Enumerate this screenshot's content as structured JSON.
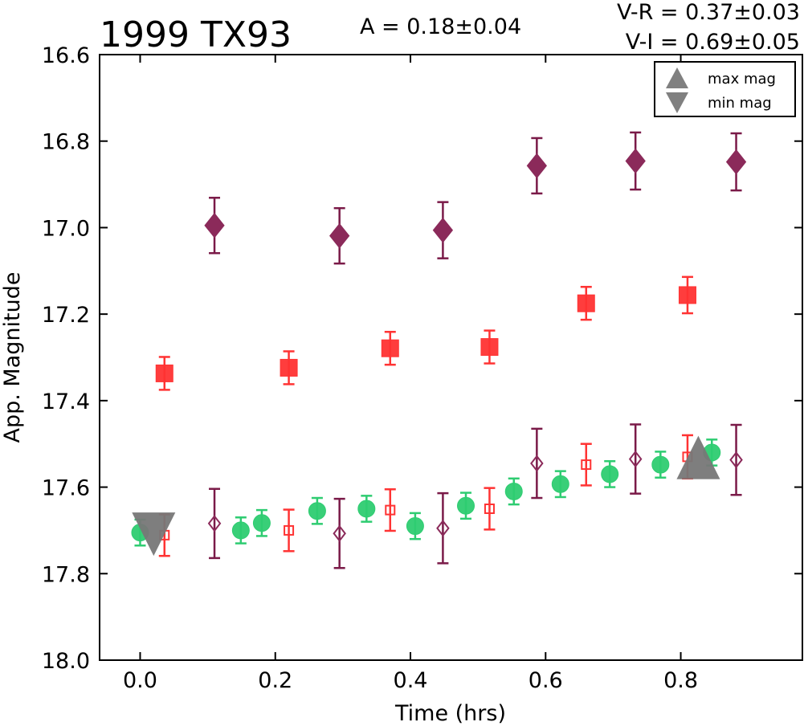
{
  "chart_data": {
    "type": "scatter",
    "title": "1999 TX93",
    "annotations": {
      "amplitude": "A  = 0.18±0.04",
      "v_r": "V-R = 0.37±0.03",
      "v_i": "V-I  = 0.69±0.05"
    },
    "xlabel": "Time (hrs)",
    "ylabel": "App. Magnitude",
    "xlim": [
      -0.06,
      0.98
    ],
    "ylim": [
      18.0,
      16.6
    ],
    "y_inverted": true,
    "x_ticks": [
      0.0,
      0.2,
      0.4,
      0.6,
      0.8
    ],
    "x_tick_labels": [
      "0.0",
      "0.2",
      "0.4",
      "0.6",
      "0.8"
    ],
    "y_ticks": [
      16.6,
      16.8,
      17.0,
      17.2,
      17.4,
      17.6,
      17.8,
      18.0
    ],
    "y_tick_labels": [
      "16.6",
      "16.8",
      "17.0",
      "17.2",
      "17.4",
      "17.6",
      "17.8",
      "18.0"
    ],
    "grid": false,
    "legend": {
      "placement": "top-right",
      "entries": [
        {
          "label": "max mag",
          "marker": "triangle-up",
          "color": "#808080"
        },
        {
          "label": "min mag",
          "marker": "triangle-down",
          "color": "#808080"
        }
      ]
    },
    "colors": {
      "green": "#2ecc71",
      "red": "#ff3333",
      "purple": "#8b2a5a",
      "purple_err": "#7a1a48",
      "gray": "#777777"
    },
    "series": [
      {
        "marker": "circle",
        "filled": true,
        "color": "#2ecc71",
        "x": [
          0.0,
          0.149,
          0.18,
          0.262,
          0.335,
          0.407,
          0.482,
          0.553,
          0.622,
          0.695,
          0.77,
          0.846
        ],
        "y": [
          17.705,
          17.7,
          17.683,
          17.655,
          17.65,
          17.69,
          17.643,
          17.61,
          17.593,
          17.57,
          17.548,
          17.52
        ],
        "yerr": [
          0.03,
          0.03,
          0.03,
          0.03,
          0.03,
          0.03,
          0.03,
          0.03,
          0.03,
          0.03,
          0.03,
          0.03
        ]
      },
      {
        "marker": "square",
        "filled": true,
        "color": "#ff3333",
        "x": [
          0.036,
          0.22,
          0.37,
          0.517,
          0.66,
          0.81
        ],
        "y": [
          17.337,
          17.324,
          17.279,
          17.276,
          17.175,
          17.156
        ],
        "yerr": [
          0.038,
          0.038,
          0.038,
          0.038,
          0.038,
          0.042
        ]
      },
      {
        "marker": "square",
        "filled": false,
        "color": "#ff3333",
        "x": [
          0.036,
          0.22,
          0.37,
          0.517,
          0.66,
          0.81
        ],
        "y": [
          17.711,
          17.7,
          17.653,
          17.65,
          17.548,
          17.53
        ],
        "yerr": [
          0.048,
          0.048,
          0.048,
          0.048,
          0.048,
          0.05
        ]
      },
      {
        "marker": "diamond",
        "filled": true,
        "color": "#8b2a5a",
        "x": [
          0.11,
          0.295,
          0.448,
          0.587,
          0.733,
          0.882
        ],
        "y": [
          16.995,
          17.019,
          17.006,
          16.857,
          16.846,
          16.848
        ],
        "yerr": [
          0.064,
          0.064,
          0.065,
          0.064,
          0.066,
          0.066
        ]
      },
      {
        "marker": "diamond",
        "filled": false,
        "color": "#8b2a5a",
        "x": [
          0.11,
          0.295,
          0.448,
          0.587,
          0.733,
          0.882
        ],
        "y": [
          17.684,
          17.707,
          17.695,
          17.545,
          17.535,
          17.537
        ],
        "yerr": [
          0.08,
          0.08,
          0.081,
          0.08,
          0.08,
          0.081
        ]
      }
    ],
    "extrema": [
      {
        "label": "min mag",
        "marker": "triangle-down",
        "x": 0.02,
        "y": 17.705,
        "color": "#777777"
      },
      {
        "label": "max mag",
        "marker": "triangle-up",
        "x": 0.826,
        "y": 17.535,
        "color": "#777777"
      }
    ]
  }
}
